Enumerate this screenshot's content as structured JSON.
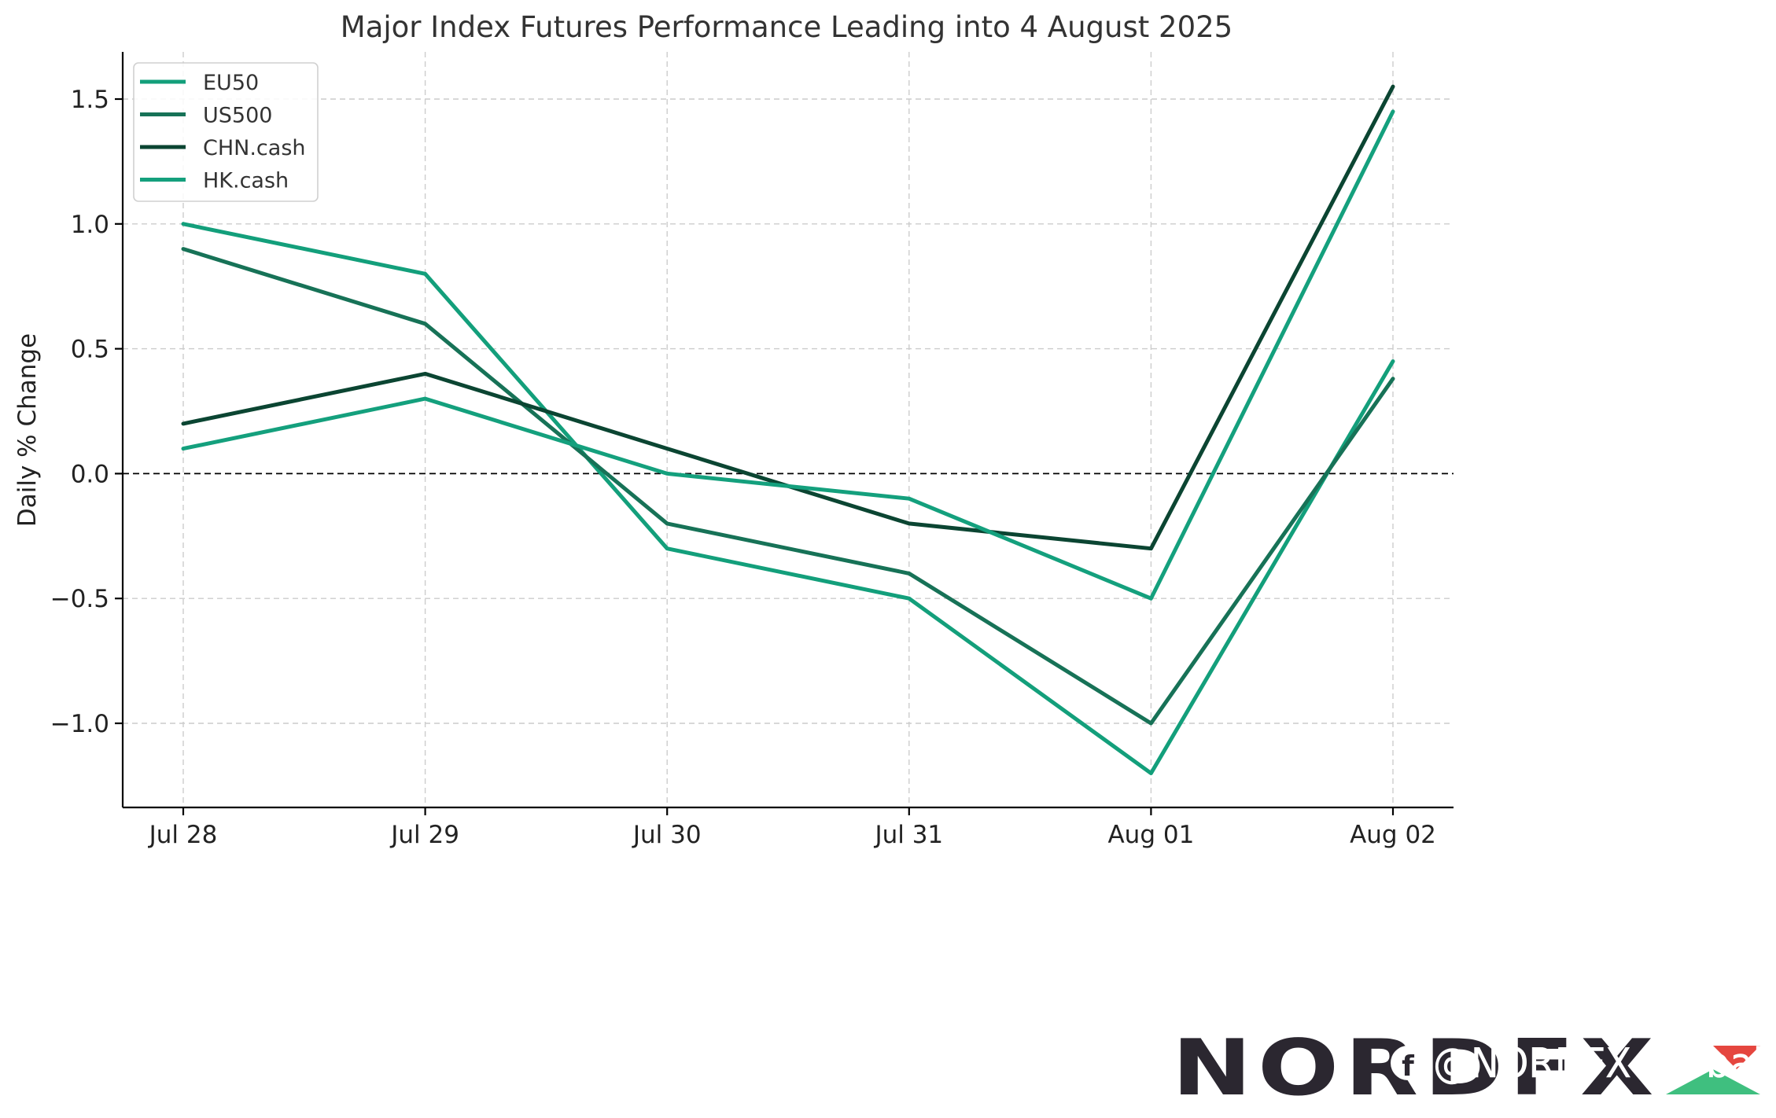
{
  "chart_data": {
    "type": "line",
    "title": "Major Index Futures Performance Leading into 4 August 2025",
    "xlabel": "",
    "ylabel": "Daily % Change",
    "x": [
      "Jul 28",
      "Jul 29",
      "Jul 30",
      "Jul 31",
      "Aug 01",
      "Aug 02"
    ],
    "y_ticks": [
      {
        "value": 1.5,
        "label": "1.5"
      },
      {
        "value": 1.0,
        "label": "1.0"
      },
      {
        "value": 0.5,
        "label": "0.5"
      },
      {
        "value": 0.0,
        "label": "0.0"
      },
      {
        "value": -0.5,
        "label": "−0.5"
      },
      {
        "value": -1.0,
        "label": "−1.0"
      }
    ],
    "ylim": [
      -1.34,
      1.7
    ],
    "grid": true,
    "zero_line": true,
    "legend_position": "top-left",
    "series": [
      {
        "name": "EU50",
        "color": "#139f7b",
        "values": [
          1.0,
          0.8,
          -0.3,
          -0.5,
          -1.2,
          0.45
        ]
      },
      {
        "name": "US500",
        "color": "#177257",
        "values": [
          0.9,
          0.6,
          -0.2,
          -0.4,
          -1.0,
          0.38
        ]
      },
      {
        "name": "CHN.cash",
        "color": "#0b4532",
        "values": [
          0.2,
          0.4,
          0.1,
          -0.2,
          -0.3,
          1.55
        ]
      },
      {
        "name": "HK.cash",
        "color": "#14a07d",
        "values": [
          0.1,
          0.3,
          0.0,
          -0.1,
          -0.5,
          1.45
        ]
      }
    ]
  },
  "branding": {
    "logo_text": "NORDFX",
    "logo_colors": {
      "text": "#2b2730",
      "red": "#e5463f",
      "green": "#3fbf7f"
    },
    "watermark": "@NORDFX Global"
  }
}
